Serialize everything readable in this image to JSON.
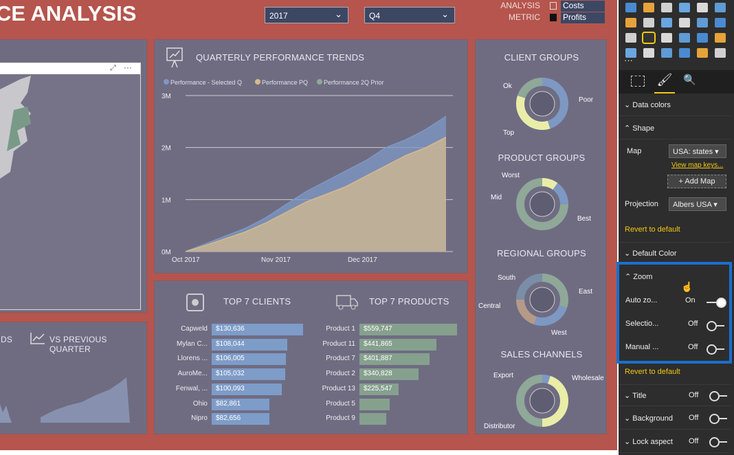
{
  "header": {
    "title": "CE ANALYSIS",
    "year": "2017",
    "quarter": "Q4",
    "analysis_label_1": "ANALYSIS",
    "analysis_label_2": "METRIC",
    "metric_options": [
      "Costs",
      "Profits"
    ]
  },
  "map_panel": {
    "more": "···"
  },
  "trends": {
    "title": "QUARTERLY PERFORMANCE TRENDS"
  },
  "chart_data": {
    "type": "area",
    "title": "QUARTERLY PERFORMANCE TRENDS",
    "x": [
      "Oct 2017",
      "",
      "",
      "",
      "",
      "Nov 2017",
      "",
      "",
      "",
      "Dec 2017",
      "",
      "",
      "",
      ""
    ],
    "x_ticks": [
      "Oct 2017",
      "Nov 2017",
      "Dec 2017"
    ],
    "y_ticks": [
      "0M",
      "1M",
      "2M",
      "3M"
    ],
    "ylim": [
      0,
      3000000
    ],
    "grid": true,
    "legend": "top-left",
    "series": [
      {
        "name": "Performance - Selected Q",
        "color": "#7e98c4",
        "values": [
          0,
          150000,
          300000,
          450000,
          650000,
          900000,
          1150000,
          1350000,
          1550000,
          1750000,
          2000000,
          2150000,
          2350000,
          2600000
        ]
      },
      {
        "name": "Performance PQ",
        "color": "#d9b98a",
        "values": [
          0,
          120000,
          250000,
          380000,
          550000,
          750000,
          950000,
          1100000,
          1250000,
          1450000,
          1650000,
          1850000,
          2000000,
          2200000
        ]
      },
      {
        "name": "Performance 2Q Prior",
        "color": "#8fa898",
        "values": [
          0,
          110000,
          230000,
          360000,
          520000,
          720000,
          920000,
          1080000,
          1230000,
          1420000,
          1620000,
          1820000,
          1980000,
          2180000
        ]
      }
    ]
  },
  "bottom_left": {
    "label_partial": "DS",
    "title": "VS PREVIOUS QUARTER"
  },
  "clients": {
    "title": "TOP 7 CLIENTS",
    "rows": [
      {
        "name": "Capweld",
        "value": "$130,636",
        "n": 130636
      },
      {
        "name": "Mylan C...",
        "value": "$108,044",
        "n": 108044
      },
      {
        "name": "Llorens ...",
        "value": "$106,005",
        "n": 106005
      },
      {
        "name": "AuroMe...",
        "value": "$105,032",
        "n": 105032
      },
      {
        "name": "Fenwal, ...",
        "value": "$100,093",
        "n": 100093
      },
      {
        "name": "Ohio",
        "value": "$82,861",
        "n": 82861
      },
      {
        "name": "Nipro",
        "value": "$82,656",
        "n": 82656
      }
    ]
  },
  "products": {
    "title": "TOP 7 PRODUCTS",
    "rows": [
      {
        "name": "Product 1",
        "value": "$559,747",
        "n": 559747
      },
      {
        "name": "Product 11",
        "value": "$441,865",
        "n": 441865
      },
      {
        "name": "Product 7",
        "value": "$401,887",
        "n": 401887
      },
      {
        "name": "Product 2",
        "value": "$340,828",
        "n": 340828
      },
      {
        "name": "Product 13",
        "value": "$225,547",
        "n": 225547
      },
      {
        "name": "Product 5",
        "value": "",
        "n": 175000
      },
      {
        "name": "Product 9",
        "value": "",
        "n": 155000
      }
    ]
  },
  "donuts": [
    {
      "title": "CLIENT GROUPS",
      "labels": [
        "Ok",
        "Poor",
        "Top"
      ],
      "values": [
        45,
        35,
        20
      ],
      "colors": [
        "#7e98c4",
        "#e9eda8",
        "#8fa898"
      ]
    },
    {
      "title": "PRODUCT GROUPS",
      "labels": [
        "Worst",
        "Mid",
        "Best"
      ],
      "values": [
        10,
        15,
        75
      ],
      "colors": [
        "#e9eda8",
        "#7e98c4",
        "#8fa898"
      ]
    },
    {
      "title": "REGIONAL GROUPS",
      "labels": [
        "South",
        "East",
        "West",
        "Central"
      ],
      "values": [
        30,
        25,
        20,
        25
      ],
      "colors": [
        "#8fa898",
        "#7e98c4",
        "#b59a88",
        "#7a8ea8"
      ]
    },
    {
      "title": "SALES CHANNELS",
      "labels": [
        "Export",
        "Wholesale",
        "Distributor"
      ],
      "values": [
        5,
        45,
        50
      ],
      "colors": [
        "#7e98c4",
        "#e9eda8",
        "#8fa898"
      ]
    }
  ],
  "pane": {
    "more": "···",
    "sections": {
      "data_colors": "Data colors",
      "shape": "Shape",
      "map_label": "Map",
      "map_value": "USA: states",
      "view_keys": "View map keys...",
      "add_map": "+ Add Map",
      "projection_label": "Projection",
      "projection_value": "Albers USA",
      "revert": "Revert to default",
      "default_color": "Default Color",
      "zoom": "Zoom",
      "auto_zoom": "Auto zo...",
      "auto_zoom_state": "On",
      "selection": "Selectio...",
      "selection_state": "Off",
      "manual": "Manual ...",
      "manual_state": "Off",
      "revert2": "Revert to default",
      "title": "Title",
      "title_state": "Off",
      "background": "Background",
      "background_state": "Off",
      "lock": "Lock aspect",
      "lock_state": "Off"
    },
    "accent": "#f2c811",
    "highlight": "#1a6fd1"
  }
}
